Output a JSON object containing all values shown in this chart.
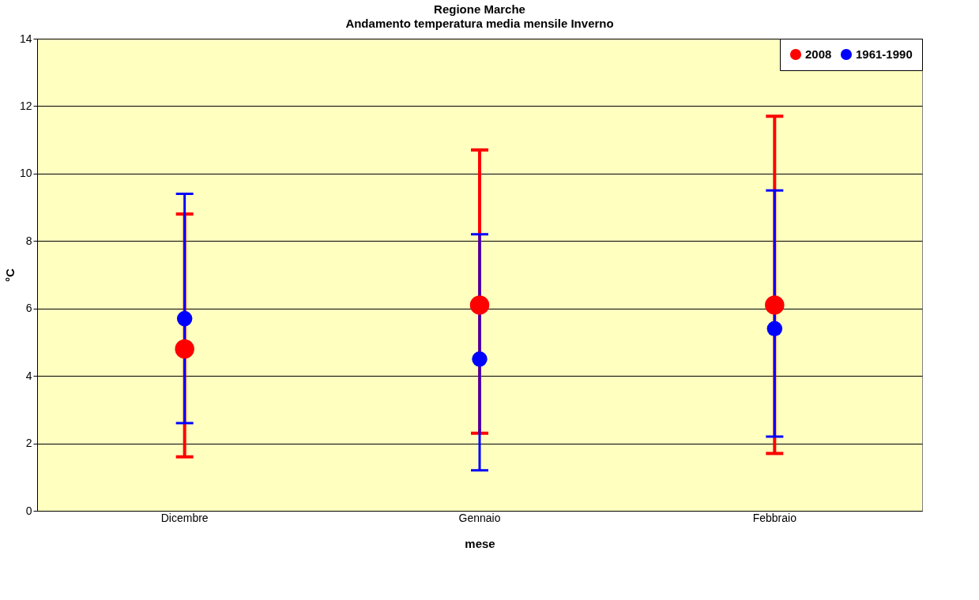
{
  "chart_data": {
    "type": "scatter",
    "title": "Regione Marche",
    "subtitle": "Andamento temperatura media mensile Inverno",
    "xlabel": "mese",
    "ylabel": "°C",
    "categories": [
      "Dicembre",
      "Gennaio",
      "Febbraio"
    ],
    "series": [
      {
        "name": "2008",
        "color": "#ff0000",
        "values": [
          4.8,
          6.1,
          6.1
        ],
        "errors": [
          [
            1.6,
            8.8
          ],
          [
            2.3,
            10.7
          ],
          [
            1.7,
            11.7
          ]
        ]
      },
      {
        "name": "1961-1990",
        "color": "#0000ff",
        "values": [
          5.7,
          4.5,
          5.4
        ],
        "errors": [
          [
            2.6,
            9.4
          ],
          [
            1.2,
            8.2
          ],
          [
            2.2,
            9.5
          ]
        ]
      }
    ],
    "ylim": [
      0,
      14
    ],
    "yticks": [
      0,
      2,
      4,
      6,
      8,
      10,
      12,
      14
    ],
    "grid": "y",
    "legend": "top right",
    "marker": "circle"
  }
}
